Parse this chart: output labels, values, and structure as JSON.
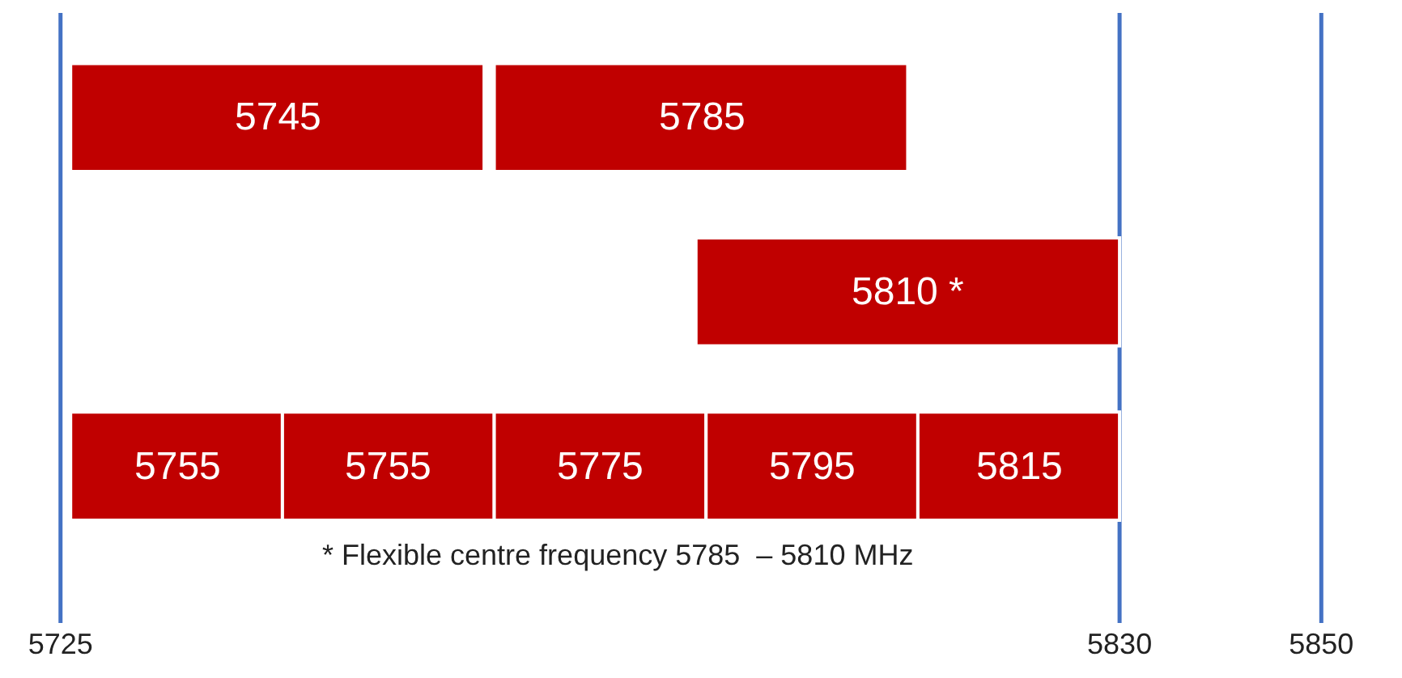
{
  "chart_data": {
    "type": "bar",
    "orientation": "horizontal",
    "categories": [
      null,
      null,
      null
    ],
    "series": [
      {
        "color": "#c00000",
        "values": [
          41,
          42,
          21
        ],
        "base": [
          5726,
          5788,
          5726
        ]
      },
      {
        "color": "#c00000",
        "values": [
          41,
          null,
          21
        ],
        "base": [
          5768,
          null,
          5747
        ]
      },
      {
        "color": "#c00000",
        "values": [
          null,
          null,
          21
        ],
        "base": [
          null,
          null,
          5768
        ]
      },
      {
        "color": "#c00000",
        "values": [
          null,
          null,
          21
        ],
        "base": [
          null,
          null,
          5789
        ]
      },
      {
        "color": "#c00000",
        "values": [
          null,
          null,
          20
        ],
        "base": [
          null,
          null,
          5810
        ]
      }
    ],
    "xlim": [
      5719,
      5858
    ],
    "xticks": [
      5725,
      5830,
      5850
    ],
    "ref_lines": [
      {
        "axis": "x",
        "value": 5725,
        "color": "#4472c4"
      },
      {
        "axis": "x",
        "value": 5830,
        "color": "#4472c4"
      },
      {
        "axis": "x",
        "value": 5850,
        "color": "#4472c4"
      }
    ],
    "annotations": [
      "5745",
      "5785",
      "5810 *",
      "5755",
      "5755",
      "5775",
      "5795",
      "5815",
      "* Flexible centre frequency 5785  – 5810 MHz"
    ],
    "tick_labels": "x",
    "grid": false
  }
}
